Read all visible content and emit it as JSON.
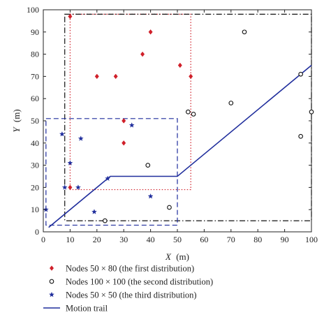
{
  "chart_data": {
    "type": "scatter",
    "xlabel": "X (m)",
    "ylabel": "Y (m)",
    "xlabel_parts": {
      "var": "X",
      "unit": "(m)"
    },
    "ylabel_parts": {
      "var": "Y",
      "unit": "(m)"
    },
    "xlim": [
      0,
      100
    ],
    "ylim": [
      0,
      100
    ],
    "xticks": [
      "0",
      "10",
      "20",
      "30",
      "40",
      "50",
      "60",
      "70",
      "80",
      "90",
      "100"
    ],
    "yticks": [
      "0",
      "10",
      "20",
      "30",
      "40",
      "50",
      "60",
      "70",
      "80",
      "90",
      "100"
    ],
    "grid": false,
    "legend_position": "below",
    "series": [
      {
        "name": "Nodes 50 × 80 (the first distribution)",
        "marker": "diamond",
        "color": "#d0202a",
        "points": [
          [
            10,
            97
          ],
          [
            40,
            90
          ],
          [
            37,
            80
          ],
          [
            20,
            70
          ],
          [
            27,
            70
          ],
          [
            51,
            75
          ],
          [
            55,
            70
          ],
          [
            30,
            50
          ],
          [
            30,
            40
          ],
          [
            10,
            20
          ]
        ]
      },
      {
        "name": "Nodes 100 × 100 (the second distribution)",
        "marker": "circle",
        "color": "#111111",
        "points": [
          [
            75,
            90
          ],
          [
            96,
            71
          ],
          [
            100,
            54
          ],
          [
            54,
            54
          ],
          [
            56,
            53
          ],
          [
            70,
            58
          ],
          [
            96,
            43
          ],
          [
            39,
            30
          ],
          [
            47,
            11
          ],
          [
            23,
            5
          ]
        ]
      },
      {
        "name": "Nodes 50 × 50 (the third distribution)",
        "marker": "star",
        "color": "#1f2d9c",
        "points": [
          [
            7,
            44
          ],
          [
            14,
            42
          ],
          [
            33,
            48
          ],
          [
            10,
            31
          ],
          [
            8,
            20
          ],
          [
            13,
            20
          ],
          [
            24,
            24
          ],
          [
            40,
            16
          ],
          [
            19,
            9
          ],
          [
            1,
            10
          ]
        ]
      },
      {
        "name": "Motion trail",
        "type": "line",
        "color": "#1f2d9c",
        "points": [
          [
            2,
            2
          ],
          [
            25,
            25
          ],
          [
            50,
            25
          ],
          [
            100,
            75
          ]
        ]
      }
    ],
    "regions": [
      {
        "name": "first-distribution-area",
        "style": "dotted",
        "color": "#d0202a",
        "x": [
          10,
          55
        ],
        "y": [
          19,
          98
        ]
      },
      {
        "name": "second-distribution-area",
        "style": "dash-dot",
        "color": "#111111",
        "x": [
          8,
          100
        ],
        "y": [
          5,
          98
        ]
      },
      {
        "name": "third-distribution-area",
        "style": "dashed",
        "color": "#1f2d9c",
        "x": [
          1,
          50
        ],
        "y": [
          3,
          51
        ]
      }
    ]
  }
}
